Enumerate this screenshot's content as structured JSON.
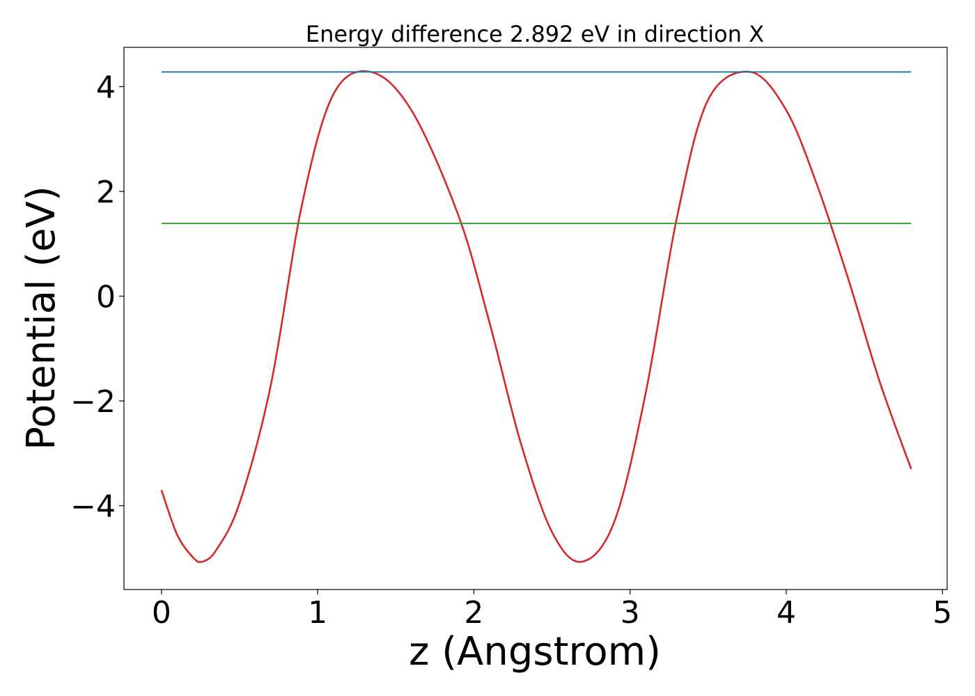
{
  "chart_data": {
    "type": "line",
    "title": "Energy difference 2.892 eV in direction X",
    "xlabel": "z (Angstrom)",
    "ylabel": "Potential (eV)",
    "xlim": [
      -0.24,
      5.03
    ],
    "ylim": [
      -5.6,
      4.75
    ],
    "xticks": [
      0,
      1,
      2,
      3,
      4,
      5
    ],
    "xtick_labels": [
      "0",
      "1",
      "2",
      "3",
      "4",
      "5"
    ],
    "yticks": [
      -4,
      -2,
      0,
      2,
      4
    ],
    "ytick_labels": [
      "−4",
      "−2",
      "0",
      "2",
      "4"
    ],
    "grid": false,
    "series": [
      {
        "color": "#d62728",
        "style": "curve",
        "x": [
          0.0,
          0.1,
          0.2,
          0.26,
          0.35,
          0.5,
          0.7,
          0.9,
          1.1,
          1.34,
          1.6,
          1.9,
          2.1,
          2.3,
          2.5,
          2.69,
          2.9,
          3.1,
          3.3,
          3.5,
          3.77,
          4.0,
          4.2,
          4.4,
          4.6,
          4.8
        ],
        "y": [
          -3.7,
          -4.55,
          -4.98,
          -5.07,
          -4.85,
          -3.95,
          -1.7,
          1.75,
          3.85,
          4.28,
          3.55,
          1.55,
          -0.5,
          -2.8,
          -4.5,
          -5.07,
          -4.3,
          -1.85,
          1.5,
          3.75,
          4.28,
          3.55,
          2.1,
          0.3,
          -1.65,
          -3.3
        ]
      },
      {
        "color": "#1f77b4",
        "style": "hline",
        "x": [
          0.0,
          4.8
        ],
        "y": [
          4.28,
          4.28
        ]
      },
      {
        "color": "#2ca02c",
        "style": "hline",
        "x": [
          0.0,
          4.8
        ],
        "y": [
          1.39,
          1.39
        ]
      }
    ]
  }
}
